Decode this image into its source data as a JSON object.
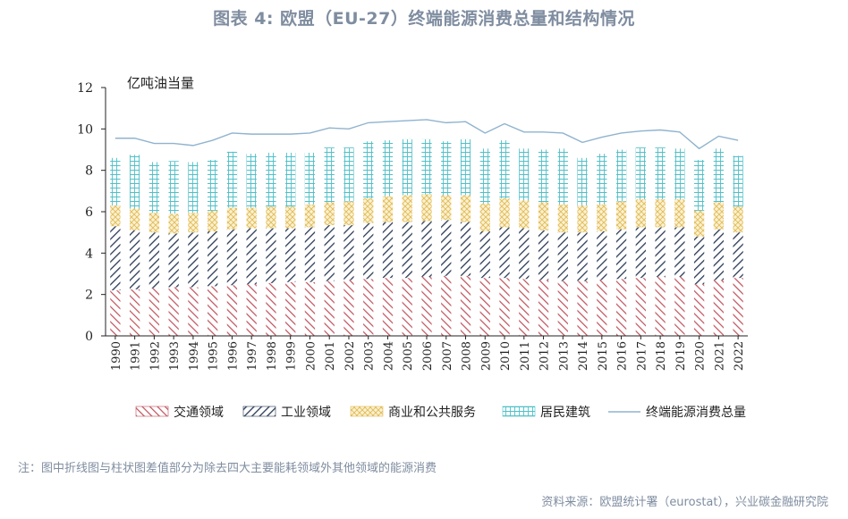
{
  "title": "图表 4:  欧盟（EU-27）终端能源消费总量和结构情况",
  "note": "注：图中折线图与柱状图差值部分为除去四大主要能耗领域外其他领域的能源消费",
  "source": "资料来源：欧盟统计署（eurostat），兴业碳金融研究院",
  "colors": {
    "transport": "#c0505a",
    "industry": "#2a3a55",
    "commercial": "#e0bb55",
    "residential": "#4fc0c8",
    "total": "#8fb3cf",
    "text_muted": "#7f8da0"
  },
  "chart_data": {
    "type": "bar",
    "stacked": true,
    "unit_label": "亿吨油当量",
    "ylim": [
      0,
      12
    ],
    "yticks": [
      0,
      2,
      4,
      6,
      8,
      10,
      12
    ],
    "grid": false,
    "legend_position": "bottom",
    "categories": [
      "1990",
      "1991",
      "1992",
      "1993",
      "1994",
      "1995",
      "1996",
      "1997",
      "1998",
      "1999",
      "2000",
      "2001",
      "2002",
      "2003",
      "2004",
      "2005",
      "2006",
      "2007",
      "2008",
      "2009",
      "2010",
      "2011",
      "2012",
      "2013",
      "2014",
      "2015",
      "2016",
      "2017",
      "2018",
      "2019",
      "2020",
      "2021",
      "2022"
    ],
    "series": [
      {
        "name": "交通领域",
        "key": "transport",
        "values": [
          2.2,
          2.25,
          2.3,
          2.35,
          2.35,
          2.4,
          2.45,
          2.5,
          2.55,
          2.6,
          2.6,
          2.65,
          2.7,
          2.75,
          2.8,
          2.8,
          2.85,
          2.9,
          2.9,
          2.8,
          2.8,
          2.75,
          2.7,
          2.65,
          2.65,
          2.7,
          2.75,
          2.8,
          2.85,
          2.85,
          2.5,
          2.7,
          2.8
        ]
      },
      {
        "name": "工业领域",
        "key": "industry",
        "values": [
          3.1,
          2.85,
          2.7,
          2.6,
          2.65,
          2.65,
          2.7,
          2.7,
          2.65,
          2.6,
          2.65,
          2.7,
          2.65,
          2.7,
          2.7,
          2.7,
          2.7,
          2.7,
          2.6,
          2.25,
          2.45,
          2.45,
          2.4,
          2.35,
          2.35,
          2.35,
          2.4,
          2.45,
          2.4,
          2.4,
          2.3,
          2.45,
          2.2
        ]
      },
      {
        "name": "商业和公共服务",
        "key": "commercial",
        "values": [
          1.0,
          1.05,
          0.95,
          0.95,
          0.95,
          1.0,
          1.05,
          1.0,
          1.05,
          1.05,
          1.1,
          1.1,
          1.15,
          1.2,
          1.25,
          1.3,
          1.3,
          1.2,
          1.3,
          1.35,
          1.4,
          1.35,
          1.35,
          1.35,
          1.3,
          1.3,
          1.35,
          1.35,
          1.35,
          1.35,
          1.25,
          1.3,
          1.25
        ]
      },
      {
        "name": "居民建筑",
        "key": "residential",
        "values": [
          2.3,
          2.6,
          2.45,
          2.55,
          2.45,
          2.45,
          2.7,
          2.6,
          2.6,
          2.6,
          2.5,
          2.65,
          2.6,
          2.75,
          2.7,
          2.7,
          2.65,
          2.6,
          2.7,
          2.65,
          2.8,
          2.5,
          2.55,
          2.7,
          2.3,
          2.45,
          2.5,
          2.5,
          2.5,
          2.45,
          2.45,
          2.6,
          2.45
        ]
      }
    ],
    "line": {
      "name": "终端能源消费总量",
      "key": "total",
      "values": [
        9.55,
        9.55,
        9.3,
        9.3,
        9.2,
        9.45,
        9.8,
        9.75,
        9.75,
        9.75,
        9.8,
        10.05,
        10.0,
        10.3,
        10.35,
        10.4,
        10.45,
        10.3,
        10.35,
        9.8,
        10.25,
        9.85,
        9.85,
        9.8,
        9.35,
        9.6,
        9.8,
        9.9,
        9.95,
        9.85,
        9.05,
        9.65,
        9.45
      ]
    }
  }
}
